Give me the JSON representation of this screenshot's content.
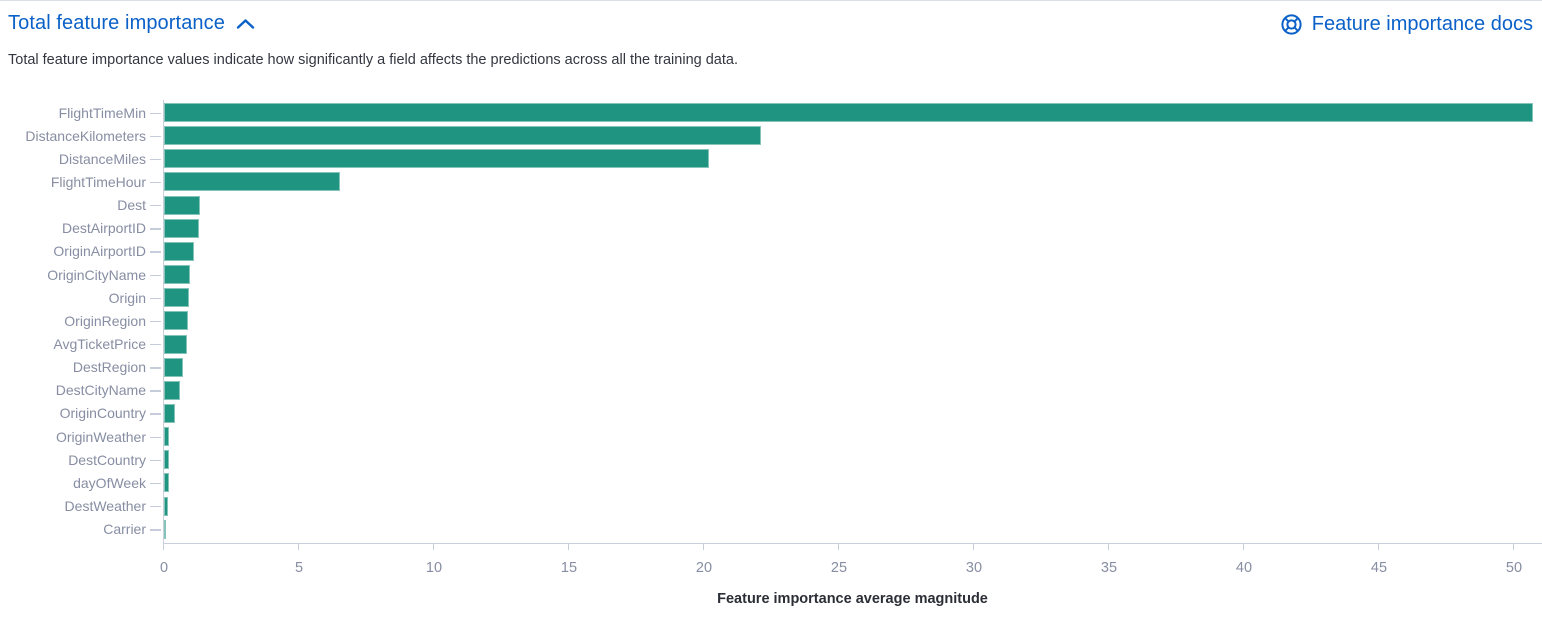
{
  "header": {
    "title": "Total feature importance",
    "collapse_icon": "chevron-up",
    "docs_link_label": "Feature importance docs",
    "docs_icon": "help-lifebuoy"
  },
  "description": "Total feature importance values indicate how significantly a field affects the predictions across all the training data.",
  "colors": {
    "link_blue": "#0b61c8",
    "bar_teal": "#1f9480",
    "axis_line": "#c9cfdb",
    "axis_label": "#878ea3",
    "text_dark": "#343741"
  },
  "chart_data": {
    "type": "bar",
    "orientation": "horizontal",
    "title": "",
    "xlabel": "Feature importance average magnitude",
    "ylabel": "",
    "categories": [
      "FlightTimeMin",
      "DistanceKilometers",
      "DistanceMiles",
      "FlightTimeHour",
      "Dest",
      "DestAirportID",
      "OriginAirportID",
      "OriginCityName",
      "Origin",
      "OriginRegion",
      "AvgTicketPrice",
      "DestRegion",
      "DestCityName",
      "OriginCountry",
      "OriginWeather",
      "DestCountry",
      "dayOfWeek",
      "DestWeather",
      "Carrier"
    ],
    "values": [
      50.7,
      22.1,
      20.2,
      6.5,
      1.35,
      1.3,
      1.1,
      0.98,
      0.94,
      0.89,
      0.85,
      0.7,
      0.58,
      0.42,
      0.2,
      0.17,
      0.17,
      0.14,
      0.06
    ],
    "x_ticks": [
      0,
      5,
      10,
      15,
      20,
      25,
      30,
      35,
      40,
      45,
      50
    ],
    "xlim": [
      0,
      51.1
    ],
    "grid": false,
    "legend": "none",
    "bar_color": "#1f9480"
  }
}
